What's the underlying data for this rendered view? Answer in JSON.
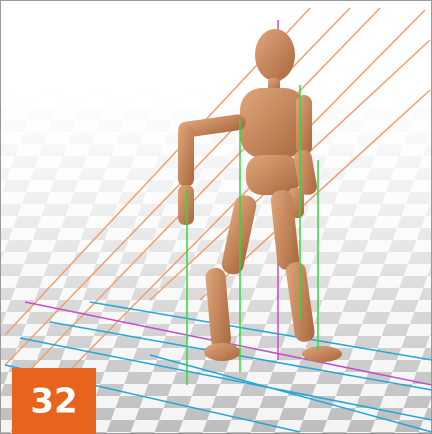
{
  "badge": {
    "label": "32"
  }
}
